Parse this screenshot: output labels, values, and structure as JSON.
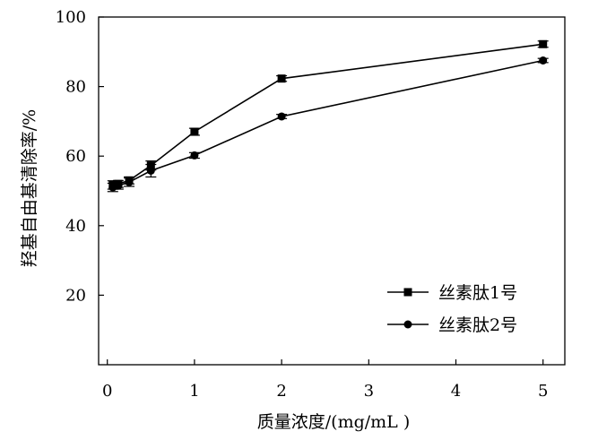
{
  "chart_data": {
    "type": "line",
    "title": "",
    "xlabel": "质量浓度/(mg/mL )",
    "ylabel": "羟基自由基清除率/%",
    "xlim": [
      -0.1,
      5.25
    ],
    "ylim": [
      0,
      100
    ],
    "x_ticks": [
      0,
      1,
      2,
      3,
      4,
      5
    ],
    "x_tick_labels": [
      "0",
      "1",
      "2",
      "3",
      "4",
      "5"
    ],
    "y_ticks": [
      20,
      40,
      60,
      80,
      100
    ],
    "y_tick_labels": [
      "20",
      "40",
      "60",
      "80",
      "100"
    ],
    "grid": false,
    "legend_position": "bottom-right",
    "series": [
      {
        "name": "丝素肽1号",
        "marker": "square",
        "x": [
          0.0625,
          0.125,
          0.25,
          0.5,
          1,
          2,
          5
        ],
        "y": [
          51.7,
          52.0,
          53.0,
          57.3,
          67.0,
          82.3,
          92.2
        ],
        "error": [
          1.2,
          1.0,
          1.0,
          1.3,
          1.0,
          0.8,
          0.9
        ]
      },
      {
        "name": "丝素肽2号",
        "marker": "circle",
        "x": [
          0.0625,
          0.125,
          0.25,
          0.5,
          1,
          2,
          5
        ],
        "y": [
          51.0,
          51.5,
          52.5,
          55.8,
          60.2,
          71.4,
          87.5
        ],
        "error": [
          1.2,
          1.0,
          1.2,
          1.8,
          0.8,
          0.6,
          0.6
        ]
      }
    ]
  }
}
